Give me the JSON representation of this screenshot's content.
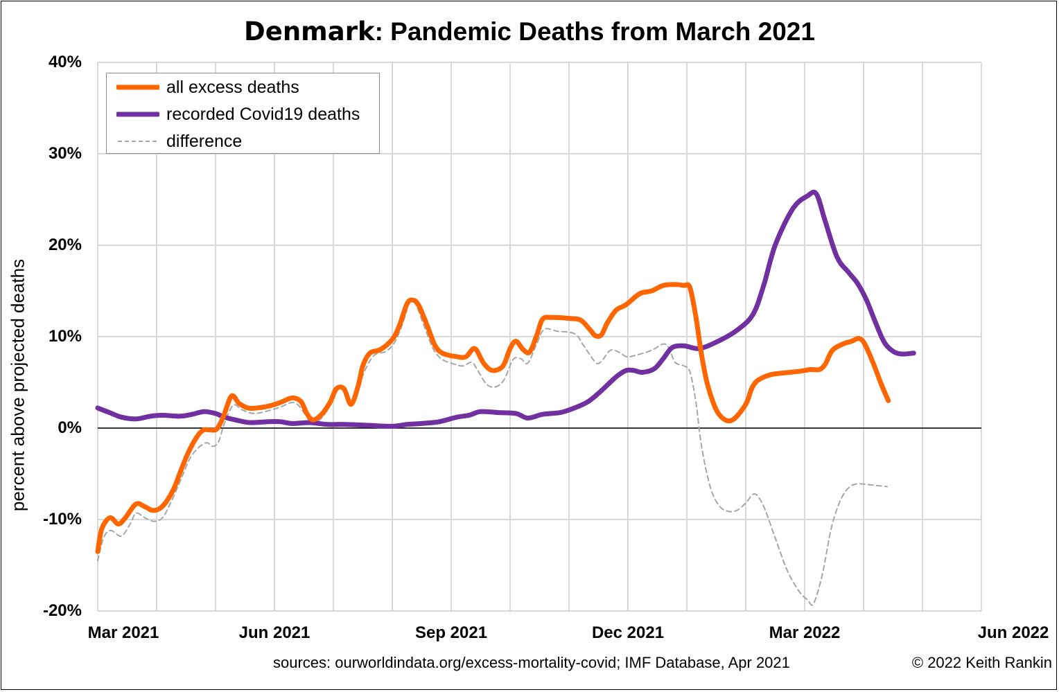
{
  "title_country": "Denmark",
  "title_rest": ": Pandemic Deaths from March 2021",
  "sources": "sources: ourworldindata.org/excess-mortality-covid; IMF Database, Apr 2021",
  "copyright": "© 2022 Keith Rankin",
  "chart_data": {
    "type": "line",
    "title": "Denmark: Pandemic Deaths from March 2021",
    "ylabel": "percent above projected deaths",
    "xlabel": "",
    "x_unit": "months since Mar 2021",
    "xlim": [
      0,
      15
    ],
    "ylim": [
      -20,
      40
    ],
    "y_ticks": [
      -20,
      -10,
      0,
      10,
      20,
      30,
      40
    ],
    "y_tick_labels": [
      "-20%",
      "-10%",
      "0%",
      "10%",
      "20%",
      "30%",
      "40%"
    ],
    "x_tick_positions": [
      0,
      3,
      6,
      9,
      12,
      15
    ],
    "x_tick_labels": [
      "Mar 2021",
      "Jun 2021",
      "Sep 2021",
      "Dec 2021",
      "Mar 2022",
      "Jun 2022"
    ],
    "grid": true,
    "legend_position": "top-left",
    "colors": {
      "excess": "#FF6600",
      "covid": "#7030A0",
      "difference": "#A6A6A6"
    },
    "series": [
      {
        "name": "all excess deaths",
        "style": "solid",
        "points": [
          [
            0,
            -13.5
          ],
          [
            0.07,
            -11
          ],
          [
            0.21,
            -9.8
          ],
          [
            0.35,
            -10.5
          ],
          [
            0.47,
            -9.8
          ],
          [
            0.65,
            -8.3
          ],
          [
            0.8,
            -8.6
          ],
          [
            0.93,
            -9
          ],
          [
            1.05,
            -8.8
          ],
          [
            1.17,
            -8
          ],
          [
            1.3,
            -6.5
          ],
          [
            1.42,
            -4.5
          ],
          [
            1.55,
            -2.5
          ],
          [
            1.7,
            -0.8
          ],
          [
            1.8,
            -0.2
          ],
          [
            1.9,
            -0.2
          ],
          [
            2.02,
            -0.1
          ],
          [
            2.13,
            1.2
          ],
          [
            2.27,
            3.5
          ],
          [
            2.4,
            2.7
          ],
          [
            2.55,
            2.2
          ],
          [
            2.7,
            2.2
          ],
          [
            2.9,
            2.4
          ],
          [
            3.1,
            2.8
          ],
          [
            3.3,
            3.3
          ],
          [
            3.45,
            2.9
          ],
          [
            3.55,
            1.6
          ],
          [
            3.65,
            0.9
          ],
          [
            3.8,
            1.5
          ],
          [
            3.95,
            2.9
          ],
          [
            4.05,
            4.3
          ],
          [
            4.18,
            4.3
          ],
          [
            4.3,
            2.6
          ],
          [
            4.42,
            4.6
          ],
          [
            4.5,
            6.8
          ],
          [
            4.62,
            8.2
          ],
          [
            4.8,
            8.6
          ],
          [
            5.0,
            9.7
          ],
          [
            5.12,
            11.2
          ],
          [
            5.25,
            13.6
          ],
          [
            5.35,
            14
          ],
          [
            5.45,
            13.4
          ],
          [
            5.6,
            11.1
          ],
          [
            5.72,
            9.1
          ],
          [
            5.85,
            8.2
          ],
          [
            6.1,
            7.8
          ],
          [
            6.25,
            7.8
          ],
          [
            6.4,
            8.7
          ],
          [
            6.55,
            7.1
          ],
          [
            6.7,
            6.3
          ],
          [
            6.88,
            6.8
          ],
          [
            7.0,
            8.7
          ],
          [
            7.1,
            9.5
          ],
          [
            7.22,
            8.6
          ],
          [
            7.33,
            8.3
          ],
          [
            7.45,
            10.1
          ],
          [
            7.55,
            11.9
          ],
          [
            7.7,
            12.1
          ],
          [
            8.0,
            12
          ],
          [
            8.2,
            11.8
          ],
          [
            8.35,
            10.8
          ],
          [
            8.45,
            10.1
          ],
          [
            8.55,
            10.2
          ],
          [
            8.65,
            11.5
          ],
          [
            8.8,
            12.9
          ],
          [
            8.97,
            13.5
          ],
          [
            9.2,
            14.7
          ],
          [
            9.4,
            15
          ],
          [
            9.6,
            15.6
          ],
          [
            9.8,
            15.7
          ],
          [
            9.95,
            15.6
          ],
          [
            10.05,
            15.4
          ],
          [
            10.15,
            12.3
          ],
          [
            10.25,
            8
          ],
          [
            10.35,
            4.8
          ],
          [
            10.5,
            2
          ],
          [
            10.65,
            0.9
          ],
          [
            10.8,
            1
          ],
          [
            11.0,
            2.6
          ],
          [
            11.1,
            4.3
          ],
          [
            11.2,
            5.2
          ],
          [
            11.4,
            5.8
          ],
          [
            11.6,
            6
          ],
          [
            11.9,
            6.2
          ],
          [
            12.1,
            6.4
          ],
          [
            12.25,
            6.4
          ],
          [
            12.35,
            7
          ],
          [
            12.47,
            8.5
          ],
          [
            12.65,
            9.2
          ],
          [
            12.8,
            9.5
          ],
          [
            12.92,
            9.8
          ],
          [
            13.02,
            9.2
          ],
          [
            13.17,
            7
          ],
          [
            13.3,
            4.8
          ],
          [
            13.42,
            3
          ]
        ]
      },
      {
        "name": "recorded Covid19 deaths",
        "style": "solid",
        "points": [
          [
            0,
            2.2
          ],
          [
            0.2,
            1.7
          ],
          [
            0.4,
            1.2
          ],
          [
            0.65,
            1
          ],
          [
            0.9,
            1.3
          ],
          [
            1.1,
            1.4
          ],
          [
            1.4,
            1.3
          ],
          [
            1.6,
            1.5
          ],
          [
            1.8,
            1.8
          ],
          [
            2.0,
            1.6
          ],
          [
            2.15,
            1.2
          ],
          [
            2.4,
            0.8
          ],
          [
            2.6,
            0.6
          ],
          [
            2.9,
            0.7
          ],
          [
            3.1,
            0.7
          ],
          [
            3.3,
            0.5
          ],
          [
            3.6,
            0.6
          ],
          [
            3.9,
            0.4
          ],
          [
            4.2,
            0.4
          ],
          [
            4.6,
            0.3
          ],
          [
            5.0,
            0.2
          ],
          [
            5.25,
            0.4
          ],
          [
            5.5,
            0.5
          ],
          [
            5.8,
            0.7
          ],
          [
            6.1,
            1.2
          ],
          [
            6.3,
            1.4
          ],
          [
            6.5,
            1.8
          ],
          [
            6.8,
            1.7
          ],
          [
            7.1,
            1.6
          ],
          [
            7.3,
            1.1
          ],
          [
            7.55,
            1.5
          ],
          [
            7.85,
            1.7
          ],
          [
            8.05,
            2.1
          ],
          [
            8.3,
            2.8
          ],
          [
            8.5,
            3.8
          ],
          [
            8.8,
            5.6
          ],
          [
            8.97,
            6.3
          ],
          [
            9.1,
            6.3
          ],
          [
            9.25,
            6.1
          ],
          [
            9.45,
            6.5
          ],
          [
            9.6,
            7.6
          ],
          [
            9.75,
            8.8
          ],
          [
            9.95,
            9
          ],
          [
            10.2,
            8.7
          ],
          [
            10.5,
            9.4
          ],
          [
            10.85,
            10.7
          ],
          [
            11.12,
            12.4
          ],
          [
            11.3,
            15.5
          ],
          [
            11.5,
            20
          ],
          [
            11.8,
            24
          ],
          [
            12.05,
            25.4
          ],
          [
            12.2,
            25.6
          ],
          [
            12.35,
            22.6
          ],
          [
            12.55,
            18.7
          ],
          [
            12.75,
            17
          ],
          [
            12.9,
            15.8
          ],
          [
            13.05,
            14
          ],
          [
            13.2,
            11.6
          ],
          [
            13.35,
            9.4
          ],
          [
            13.5,
            8.4
          ],
          [
            13.65,
            8.1
          ],
          [
            13.85,
            8.2
          ]
        ]
      },
      {
        "name": "difference",
        "style": "dashed",
        "points": [
          [
            0,
            -14.5
          ],
          [
            0.1,
            -12
          ],
          [
            0.22,
            -11.2
          ],
          [
            0.4,
            -11.8
          ],
          [
            0.55,
            -10.5
          ],
          [
            0.65,
            -9.3
          ],
          [
            0.8,
            -9.8
          ],
          [
            0.95,
            -10.2
          ],
          [
            1.1,
            -9.8
          ],
          [
            1.25,
            -8
          ],
          [
            1.42,
            -5.5
          ],
          [
            1.55,
            -3.5
          ],
          [
            1.7,
            -2.2
          ],
          [
            1.85,
            -1.6
          ],
          [
            1.95,
            -2
          ],
          [
            2.05,
            -1.5
          ],
          [
            2.15,
            0.5
          ],
          [
            2.3,
            2.5
          ],
          [
            2.45,
            2
          ],
          [
            2.65,
            1.6
          ],
          [
            2.9,
            1.9
          ],
          [
            3.1,
            2.3
          ],
          [
            3.3,
            2.8
          ],
          [
            3.42,
            2.4
          ],
          [
            3.55,
            1.2
          ],
          [
            3.65,
            0.4
          ],
          [
            3.8,
            1.1
          ],
          [
            3.95,
            2.5
          ],
          [
            4.08,
            4.2
          ],
          [
            4.2,
            4
          ],
          [
            4.3,
            2.4
          ],
          [
            4.42,
            4.4
          ],
          [
            4.55,
            6.5
          ],
          [
            4.7,
            8
          ],
          [
            4.9,
            8.4
          ],
          [
            5.05,
            9.5
          ],
          [
            5.18,
            11.5
          ],
          [
            5.3,
            13.8
          ],
          [
            5.4,
            13.5
          ],
          [
            5.55,
            11
          ],
          [
            5.7,
            8.6
          ],
          [
            5.85,
            7.5
          ],
          [
            6.05,
            7
          ],
          [
            6.2,
            6.8
          ],
          [
            6.35,
            7.2
          ],
          [
            6.45,
            6.3
          ],
          [
            6.6,
            4.8
          ],
          [
            6.75,
            4.5
          ],
          [
            6.9,
            5.3
          ],
          [
            7.05,
            7.5
          ],
          [
            7.18,
            7.6
          ],
          [
            7.3,
            7.1
          ],
          [
            7.45,
            9.2
          ],
          [
            7.58,
            10.8
          ],
          [
            7.8,
            10.6
          ],
          [
            8.1,
            10.3
          ],
          [
            8.25,
            9
          ],
          [
            8.45,
            7.2
          ],
          [
            8.55,
            7.3
          ],
          [
            8.7,
            8.5
          ],
          [
            8.85,
            8.3
          ],
          [
            8.98,
            7.8
          ],
          [
            9.15,
            8
          ],
          [
            9.4,
            8.5
          ],
          [
            9.6,
            9.2
          ],
          [
            9.7,
            8.7
          ],
          [
            9.8,
            7.2
          ],
          [
            9.95,
            6.8
          ],
          [
            10.05,
            6.2
          ],
          [
            10.15,
            3
          ],
          [
            10.25,
            -2
          ],
          [
            10.4,
            -6.5
          ],
          [
            10.55,
            -8.5
          ],
          [
            10.7,
            -9.1
          ],
          [
            10.85,
            -9
          ],
          [
            11.0,
            -8.2
          ],
          [
            11.15,
            -7.2
          ],
          [
            11.3,
            -8.5
          ],
          [
            11.5,
            -12
          ],
          [
            11.7,
            -15.5
          ],
          [
            11.9,
            -17.8
          ],
          [
            12.05,
            -18.8
          ],
          [
            12.15,
            -19.2
          ],
          [
            12.3,
            -16
          ],
          [
            12.45,
            -11
          ],
          [
            12.6,
            -8
          ],
          [
            12.75,
            -6.5
          ],
          [
            12.9,
            -6.1
          ],
          [
            13.1,
            -6.2
          ],
          [
            13.4,
            -6.4
          ]
        ]
      }
    ]
  }
}
